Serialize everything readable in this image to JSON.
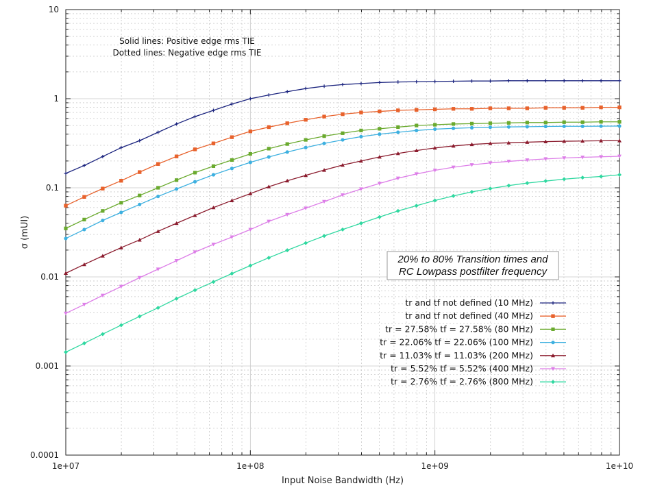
{
  "chart_data": {
    "type": "line",
    "title": "",
    "xlabel": "Input Noise Bandwidth (Hz)",
    "ylabel": "σ (mUI)",
    "x_scale": "log",
    "y_scale": "log",
    "xlim": [
      10000000,
      10000000000
    ],
    "ylim": [
      0.0001,
      10
    ],
    "grid": true,
    "legend_position": "bottom-right",
    "x_ticks": [
      {
        "value": 10000000,
        "label": "1e+07"
      },
      {
        "value": 100000000,
        "label": "1e+08"
      },
      {
        "value": 1000000000,
        "label": "1e+09"
      },
      {
        "value": 10000000000,
        "label": "1e+10"
      }
    ],
    "y_ticks": [
      {
        "value": 0.0001,
        "label": "0.0001"
      },
      {
        "value": 0.001,
        "label": "0.001"
      },
      {
        "value": 0.01,
        "label": "0.01"
      },
      {
        "value": 0.1,
        "label": "0.1"
      },
      {
        "value": 1,
        "label": "1"
      },
      {
        "value": 10,
        "label": "10"
      }
    ],
    "annotations": {
      "note_line1": "Solid lines: Positive edge rms TIE",
      "note_line2": "Dotted lines: Negative edge rms TIE",
      "box_line1": "20% to 80% Transition times and",
      "box_line2": "RC Lowpass postfilter frequency"
    },
    "x": [
      10000000,
      12589254,
      15848932,
      19952623,
      25118864,
      31622777,
      39810717,
      50118723,
      63095734,
      79432823,
      100000000,
      125892541,
      158489319,
      199526231,
      251188643,
      316227766,
      398107171,
      501187234,
      630957344,
      794328235,
      1000000000,
      1258925412,
      1584893192,
      1995262315,
      2511886432,
      3162277660,
      3981071706,
      5011872336,
      6309573445,
      7943282347,
      10000000000
    ],
    "series": [
      {
        "name": "tr and tf not defined (10 MHz)",
        "color": "#1a237e",
        "marker": "plus",
        "values": [
          0.145,
          0.178,
          0.224,
          0.282,
          0.338,
          0.42,
          0.52,
          0.63,
          0.74,
          0.87,
          1.0,
          1.1,
          1.2,
          1.3,
          1.38,
          1.44,
          1.48,
          1.52,
          1.54,
          1.55,
          1.56,
          1.57,
          1.58,
          1.58,
          1.59,
          1.59,
          1.59,
          1.59,
          1.59,
          1.59,
          1.59
        ]
      },
      {
        "name": "tr and tf not defined (40 MHz)",
        "color": "#e8622c",
        "marker": "square-open",
        "values": [
          0.063,
          0.079,
          0.098,
          0.12,
          0.15,
          0.185,
          0.225,
          0.27,
          0.315,
          0.37,
          0.43,
          0.48,
          0.53,
          0.58,
          0.63,
          0.67,
          0.7,
          0.72,
          0.74,
          0.75,
          0.76,
          0.77,
          0.77,
          0.78,
          0.78,
          0.78,
          0.79,
          0.79,
          0.79,
          0.8,
          0.8
        ]
      },
      {
        "name": "tr = 27.58% tf = 27.58% (80 MHz)",
        "color": "#6aaa2e",
        "marker": "square",
        "values": [
          0.035,
          0.044,
          0.055,
          0.068,
          0.082,
          0.1,
          0.122,
          0.148,
          0.175,
          0.205,
          0.24,
          0.275,
          0.31,
          0.345,
          0.38,
          0.41,
          0.44,
          0.46,
          0.48,
          0.5,
          0.51,
          0.52,
          0.525,
          0.53,
          0.535,
          0.54,
          0.54,
          0.545,
          0.545,
          0.55,
          0.55
        ]
      },
      {
        "name": "tr = 22.06% tf = 22.06% (100 MHz)",
        "color": "#3db0e0",
        "marker": "circle",
        "values": [
          0.027,
          0.034,
          0.043,
          0.053,
          0.065,
          0.08,
          0.097,
          0.117,
          0.14,
          0.165,
          0.193,
          0.222,
          0.252,
          0.283,
          0.315,
          0.345,
          0.375,
          0.4,
          0.42,
          0.44,
          0.455,
          0.465,
          0.472,
          0.478,
          0.482,
          0.485,
          0.488,
          0.49,
          0.49,
          0.492,
          0.493
        ]
      },
      {
        "name": "tr = 11.03% tf = 11.03% (200 MHz)",
        "color": "#8b1c2e",
        "marker": "triangle",
        "values": [
          0.011,
          0.0138,
          0.0172,
          0.0213,
          0.026,
          0.0325,
          0.04,
          0.049,
          0.06,
          0.072,
          0.086,
          0.103,
          0.12,
          0.138,
          0.158,
          0.18,
          0.2,
          0.222,
          0.243,
          0.262,
          0.28,
          0.295,
          0.307,
          0.315,
          0.32,
          0.325,
          0.33,
          0.333,
          0.335,
          0.337,
          0.338
        ]
      },
      {
        "name": "tr = 5.52% tf = 5.52% (400 MHz)",
        "color": "#dd7ee8",
        "marker": "triangle-down",
        "values": [
          0.0039,
          0.0049,
          0.0062,
          0.0078,
          0.0098,
          0.0122,
          0.0152,
          0.019,
          0.0232,
          0.028,
          0.034,
          0.042,
          0.05,
          0.059,
          0.07,
          0.083,
          0.097,
          0.112,
          0.128,
          0.143,
          0.157,
          0.17,
          0.181,
          0.19,
          0.198,
          0.205,
          0.211,
          0.216,
          0.22,
          0.223,
          0.226
        ]
      },
      {
        "name": "tr = 2.76% tf = 2.76% (800 MHz)",
        "color": "#2fd8a0",
        "marker": "diamond",
        "values": [
          0.00143,
          0.0018,
          0.00228,
          0.00287,
          0.0036,
          0.0045,
          0.0057,
          0.0071,
          0.0088,
          0.0109,
          0.0134,
          0.0164,
          0.0199,
          0.024,
          0.0288,
          0.034,
          0.04,
          0.047,
          0.055,
          0.063,
          0.072,
          0.081,
          0.09,
          0.098,
          0.106,
          0.113,
          0.119,
          0.125,
          0.13,
          0.134,
          0.14
        ]
      }
    ]
  }
}
